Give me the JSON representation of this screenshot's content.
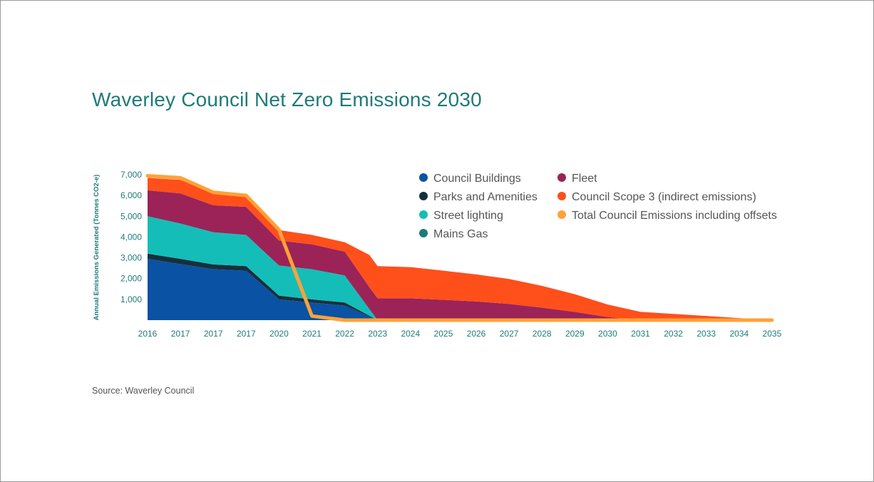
{
  "title": "Waverley Council Net Zero Emissions 2030",
  "source": "Source: Waverley Council",
  "chart_data": {
    "type": "area",
    "stacked": true,
    "title": "Waverley Council Net Zero Emissions 2030",
    "ylabel": "Annual Emissions Generated (Tonnes CO2-e)",
    "xlabel": "",
    "ylim": [
      0,
      7000
    ],
    "yticks": [
      1000,
      2000,
      3000,
      4000,
      5000,
      6000,
      7000
    ],
    "ytick_labels": [
      "1,000",
      "2,000",
      "3,000",
      "4,000",
      "5,000",
      "6,000",
      "7,000"
    ],
    "x_labels": [
      "2016",
      "2017",
      "2017",
      "2017",
      "2020",
      "2021",
      "2022",
      "2023",
      "2024",
      "2025",
      "2026",
      "2027",
      "2028",
      "2029",
      "2030",
      "2031",
      "2032",
      "2033",
      "2034",
      "2035"
    ],
    "legend_position": "top-right",
    "grid": false,
    "series": [
      {
        "name": "Council Buildings",
        "color": "#0a52a3",
        "points": [
          [
            0,
            2950
          ],
          [
            1,
            2700
          ],
          [
            2,
            2450
          ],
          [
            3,
            2380
          ],
          [
            4,
            1000
          ],
          [
            5,
            850
          ],
          [
            6,
            700
          ],
          [
            7,
            0
          ],
          [
            19,
            0
          ]
        ]
      },
      {
        "name": "Parks and Amenities",
        "color": "#14303e",
        "points": [
          [
            0,
            250
          ],
          [
            1,
            250
          ],
          [
            2,
            230
          ],
          [
            3,
            220
          ],
          [
            4,
            180
          ],
          [
            5,
            150
          ],
          [
            6,
            150
          ],
          [
            7,
            0
          ],
          [
            19,
            0
          ]
        ]
      },
      {
        "name": "Street lighting",
        "color": "#15bdb8",
        "points": [
          [
            0,
            1800
          ],
          [
            1,
            1700
          ],
          [
            2,
            1550
          ],
          [
            3,
            1500
          ],
          [
            4,
            1450
          ],
          [
            5,
            1450
          ],
          [
            6,
            1300
          ],
          [
            7,
            0
          ],
          [
            19,
            0
          ]
        ]
      },
      {
        "name": "Mains Gas",
        "color": "#1f7a7a",
        "points": [
          [
            0,
            0
          ],
          [
            19,
            0
          ]
        ]
      },
      {
        "name": "Fleet",
        "color": "#9b2358",
        "points": [
          [
            0,
            1250
          ],
          [
            1,
            1450
          ],
          [
            2,
            1300
          ],
          [
            3,
            1350
          ],
          [
            4,
            1200
          ],
          [
            5,
            1200
          ],
          [
            6,
            1150
          ],
          [
            6.75,
            1050
          ],
          [
            7,
            1050
          ],
          [
            8,
            1050
          ],
          [
            9,
            980
          ],
          [
            10,
            900
          ],
          [
            11,
            780
          ],
          [
            12,
            600
          ],
          [
            13,
            400
          ],
          [
            14,
            150
          ],
          [
            15,
            0
          ],
          [
            19,
            0
          ]
        ]
      },
      {
        "name": "Council Scope 3 (indirect emissions)",
        "color": "#ff4f1b",
        "points": [
          [
            0,
            600
          ],
          [
            1,
            650
          ],
          [
            2,
            600
          ],
          [
            3,
            550
          ],
          [
            4,
            500
          ],
          [
            5,
            450
          ],
          [
            6,
            450
          ],
          [
            6.75,
            1550
          ],
          [
            7,
            1550
          ],
          [
            8,
            1500
          ],
          [
            9,
            1400
          ],
          [
            10,
            1300
          ],
          [
            11,
            1200
          ],
          [
            12,
            1050
          ],
          [
            13,
            850
          ],
          [
            14,
            600
          ],
          [
            15,
            400
          ],
          [
            16,
            300
          ],
          [
            17,
            200
          ],
          [
            18,
            100
          ],
          [
            19,
            0
          ]
        ]
      },
      {
        "name": "Total Council Emissions including offsets",
        "color": "#ffa238",
        "type": "line",
        "points": [
          [
            0,
            6950
          ],
          [
            1,
            6850
          ],
          [
            2,
            6150
          ],
          [
            3,
            6000
          ],
          [
            4,
            4350
          ],
          [
            5,
            200
          ],
          [
            6,
            0
          ],
          [
            19,
            0
          ]
        ]
      }
    ]
  }
}
